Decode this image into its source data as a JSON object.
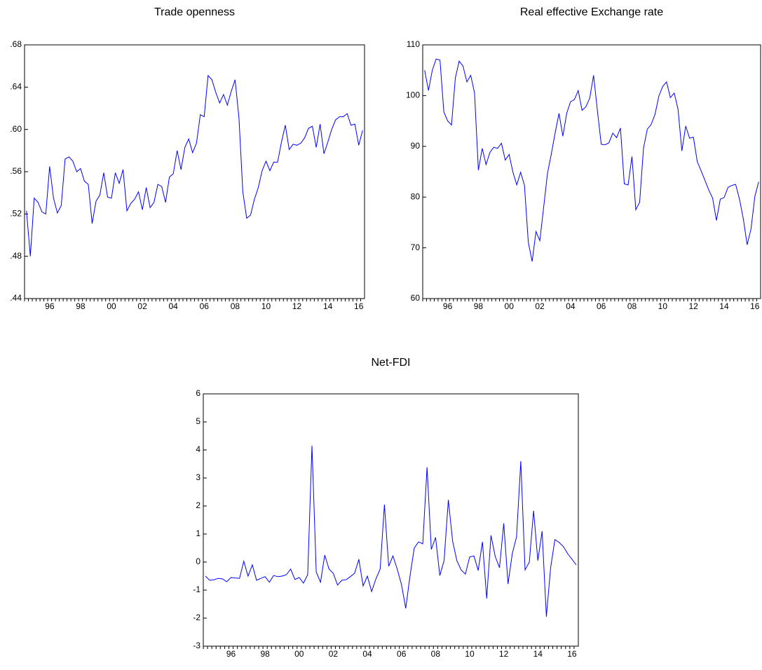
{
  "chart_data": [
    {
      "type": "line",
      "title": "Trade openness",
      "categories": [
        null,
        null,
        null,
        null,
        null,
        null,
        "96",
        null,
        null,
        null,
        null,
        null,
        null,
        null,
        "98",
        null,
        null,
        null,
        null,
        null,
        null,
        null,
        "00",
        null,
        null,
        null,
        null,
        null,
        null,
        null,
        "02",
        null,
        null,
        null,
        null,
        null,
        null,
        null,
        "04",
        null,
        null,
        null,
        null,
        null,
        null,
        null,
        "06",
        null,
        null,
        null,
        null,
        null,
        null,
        null,
        "08",
        null,
        null,
        null,
        null,
        null,
        null,
        null,
        "10",
        null,
        null,
        null,
        null,
        null,
        null,
        null,
        "12",
        null,
        null,
        null,
        null,
        null,
        null,
        null,
        "14",
        null,
        null,
        null,
        null,
        null,
        null,
        null,
        "16",
        null
      ],
      "values": [
        0.523,
        0.48,
        0.535,
        0.531,
        0.522,
        0.52,
        0.565,
        0.535,
        0.521,
        0.528,
        0.572,
        0.574,
        0.57,
        0.56,
        0.563,
        0.551,
        0.548,
        0.511,
        0.532,
        0.538,
        0.559,
        0.536,
        0.535,
        0.559,
        0.549,
        0.562,
        0.523,
        0.53,
        0.534,
        0.541,
        0.524,
        0.545,
        0.526,
        0.531,
        0.548,
        0.546,
        0.531,
        0.555,
        0.558,
        0.58,
        0.562,
        0.583,
        0.591,
        0.578,
        0.587,
        0.614,
        0.612,
        0.651,
        0.647,
        0.635,
        0.625,
        0.633,
        0.623,
        0.636,
        0.647,
        0.611,
        0.541,
        0.516,
        0.519,
        0.534,
        0.545,
        0.561,
        0.57,
        0.561,
        0.569,
        0.569,
        0.588,
        0.604,
        0.581,
        0.586,
        0.585,
        0.587,
        0.592,
        0.601,
        0.603,
        0.583,
        0.605,
        0.577,
        0.588,
        0.6,
        0.609,
        0.612,
        0.612,
        0.615,
        0.604,
        0.605,
        0.585,
        0.599
      ],
      "color": "#0000ff",
      "ylim": [
        0.44,
        0.68
      ],
      "yticks": [
        {
          "value": 0.44,
          "label": ".44"
        },
        {
          "value": 0.48,
          "label": ".48"
        },
        {
          "value": 0.52,
          "label": ".52"
        },
        {
          "value": 0.56,
          "label": ".56"
        },
        {
          "value": 0.6,
          "label": ".60"
        },
        {
          "value": 0.64,
          "label": ".64"
        },
        {
          "value": 0.68,
          "label": ".68"
        }
      ]
    },
    {
      "type": "line",
      "title": "Real effective Exchange rate",
      "categories": [
        null,
        null,
        null,
        null,
        null,
        null,
        "96",
        null,
        null,
        null,
        null,
        null,
        null,
        null,
        "98",
        null,
        null,
        null,
        null,
        null,
        null,
        null,
        "00",
        null,
        null,
        null,
        null,
        null,
        null,
        null,
        "02",
        null,
        null,
        null,
        null,
        null,
        null,
        null,
        "04",
        null,
        null,
        null,
        null,
        null,
        null,
        null,
        "06",
        null,
        null,
        null,
        null,
        null,
        null,
        null,
        "08",
        null,
        null,
        null,
        null,
        null,
        null,
        null,
        "10",
        null,
        null,
        null,
        null,
        null,
        null,
        null,
        "12",
        null,
        null,
        null,
        null,
        null,
        null,
        null,
        "14",
        null,
        null,
        null,
        null,
        null,
        null,
        null,
        "16",
        null
      ],
      "values": [
        105,
        101,
        105,
        107.2,
        107,
        96.8,
        95,
        94.2,
        103.5,
        106.8,
        105.8,
        102.7,
        104,
        100.5,
        85.3,
        89.6,
        86.4,
        88.8,
        89.8,
        89.6,
        90.6,
        87.3,
        88.4,
        84.9,
        82.4,
        84.9,
        82.3,
        71.1,
        67.3,
        73.2,
        71.4,
        78,
        84.7,
        88.5,
        92.7,
        96.5,
        92,
        96.5,
        98.8,
        99.2,
        101,
        97.1,
        97.8,
        99.5,
        104,
        97,
        90.4,
        90.3,
        90.7,
        92.6,
        91.7,
        93.6,
        82.6,
        82.4,
        88,
        77.5,
        79,
        89.6,
        93.4,
        94.3,
        96.3,
        99.9,
        101.8,
        102.7,
        99.6,
        100.5,
        97.3,
        89.1,
        94,
        91.6,
        91.8,
        87,
        85.2,
        83.3,
        81.4,
        79.8,
        75.4,
        79.6,
        79.9,
        81.9,
        82.3,
        82.5,
        79.6,
        75.7,
        70.6,
        73.7,
        80.1,
        83
      ],
      "color": "#0000ff",
      "ylim": [
        60,
        110
      ],
      "yticks": [
        60,
        70,
        80,
        90,
        100,
        110
      ]
    },
    {
      "type": "line",
      "title": "Net-FDI",
      "categories": [
        null,
        null,
        null,
        null,
        null,
        null,
        "96",
        null,
        null,
        null,
        null,
        null,
        null,
        null,
        "98",
        null,
        null,
        null,
        null,
        null,
        null,
        null,
        "00",
        null,
        null,
        null,
        null,
        null,
        null,
        null,
        "02",
        null,
        null,
        null,
        null,
        null,
        null,
        null,
        "04",
        null,
        null,
        null,
        null,
        null,
        null,
        null,
        "06",
        null,
        null,
        null,
        null,
        null,
        null,
        null,
        "08",
        null,
        null,
        null,
        null,
        null,
        null,
        null,
        "10",
        null,
        null,
        null,
        null,
        null,
        null,
        null,
        "12",
        null,
        null,
        null,
        null,
        null,
        null,
        null,
        "14",
        null,
        null,
        null,
        null,
        null,
        null,
        null,
        "16",
        null
      ],
      "values": [
        -0.5,
        -0.65,
        -0.63,
        -0.58,
        -0.6,
        -0.7,
        -0.55,
        -0.57,
        -0.58,
        0.03,
        -0.5,
        -0.1,
        -0.65,
        -0.58,
        -0.52,
        -0.72,
        -0.48,
        -0.52,
        -0.5,
        -0.45,
        -0.25,
        -0.62,
        -0.55,
        -0.75,
        -0.45,
        4.15,
        -0.35,
        -0.72,
        0.25,
        -0.25,
        -0.4,
        -0.82,
        -0.65,
        -0.63,
        -0.52,
        -0.4,
        0.1,
        -0.85,
        -0.5,
        -1.05,
        -0.6,
        -0.25,
        2.05,
        -0.15,
        0.22,
        -0.25,
        -0.8,
        -1.65,
        -0.5,
        0.5,
        0.72,
        0.65,
        3.38,
        0.45,
        0.88,
        -0.48,
        0.05,
        2.22,
        0.75,
        0.05,
        -0.28,
        -0.43,
        0.18,
        0.22,
        -0.3,
        0.72,
        -1.3,
        0.95,
        0.2,
        -0.2,
        1.38,
        -0.78,
        0.3,
        0.9,
        3.6,
        -0.28,
        0,
        1.83,
        0.05,
        1.1,
        -1.95,
        -0.2,
        0.8,
        0.7,
        0.55,
        0.3,
        0.1,
        -0.1
      ],
      "color": "#0000ff",
      "ylim": [
        -3,
        6
      ],
      "yticks": [
        -3,
        -2,
        -1,
        0,
        1,
        2,
        3,
        4,
        5,
        6
      ]
    }
  ]
}
